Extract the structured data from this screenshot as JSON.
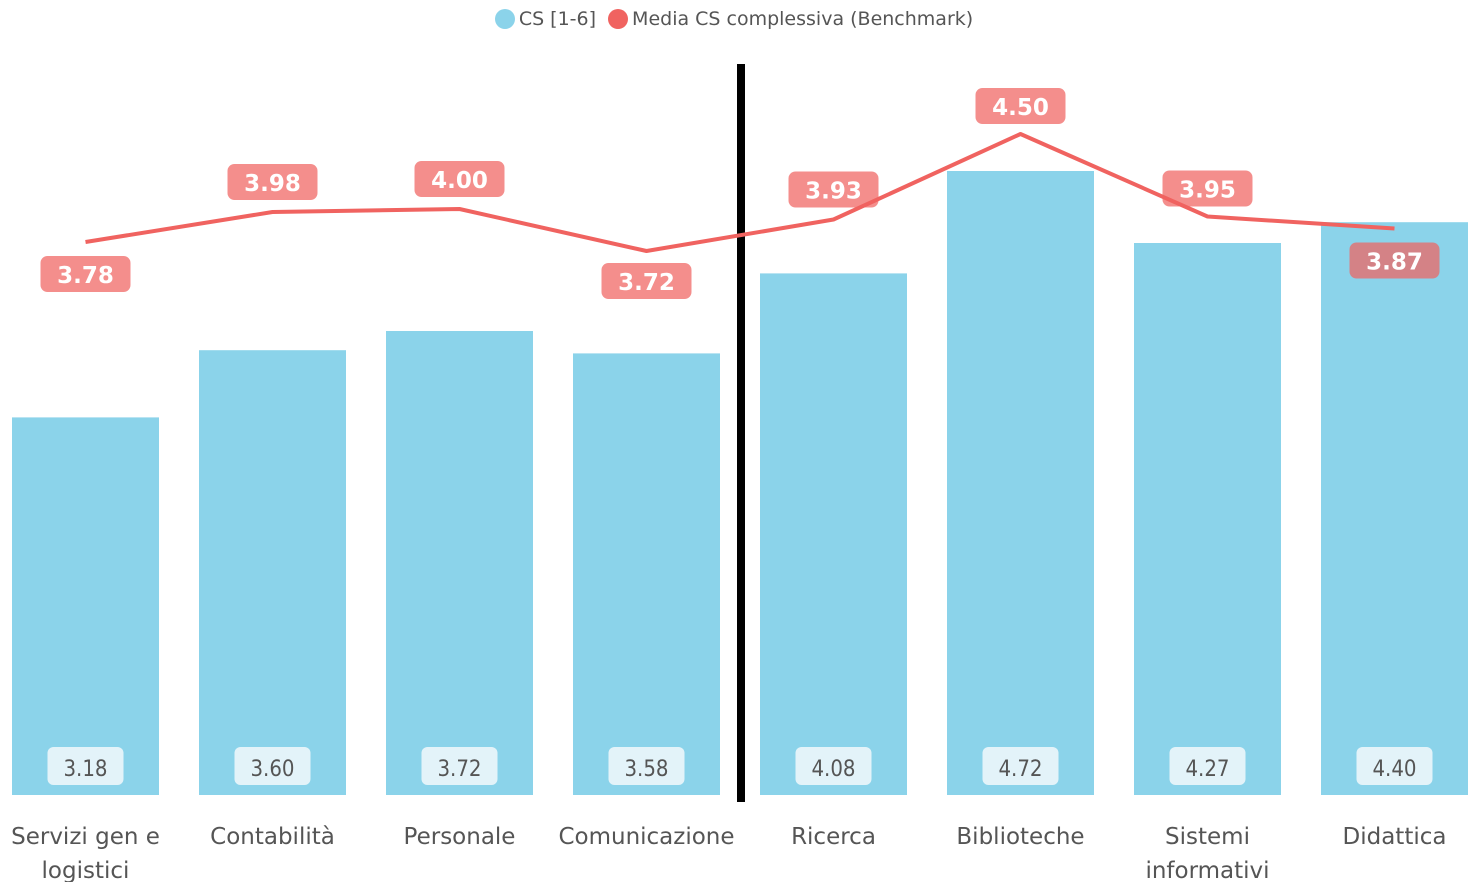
{
  "legend": {
    "items": [
      {
        "label": "CS [1-6]",
        "color": "#8BD3EA"
      },
      {
        "label": "Media CS complessiva (Benchmark)",
        "color": "#F06360"
      }
    ]
  },
  "chart_data": {
    "type": "bar",
    "categories": [
      "Servizi gen e logistici",
      "Contabilità",
      "Personale",
      "Comunicazione",
      "Ricerca",
      "Biblioteche",
      "Sistemi informativi",
      "Didattica"
    ],
    "series": [
      {
        "name": "CS [1-6]",
        "type": "bar",
        "values": [
          3.18,
          3.6,
          3.72,
          3.58,
          4.08,
          4.72,
          4.27,
          4.4
        ],
        "labels": [
          "3.18",
          "3.60",
          "3.72",
          "3.58",
          "4.08",
          "4.72",
          "4.27",
          "4.40"
        ],
        "color": "#8BD3EA"
      },
      {
        "name": "Media CS complessiva (Benchmark)",
        "type": "line",
        "values": [
          3.78,
          3.98,
          4.0,
          3.72,
          3.93,
          4.5,
          3.95,
          3.87
        ],
        "labels": [
          "3.78",
          "3.98",
          "4.00",
          "3.72",
          "3.93",
          "4.50",
          "3.95",
          "3.87"
        ],
        "color": "#F06360"
      }
    ],
    "divider_after_category": "Comunicazione",
    "legend_position": "top-center",
    "grid": false
  }
}
